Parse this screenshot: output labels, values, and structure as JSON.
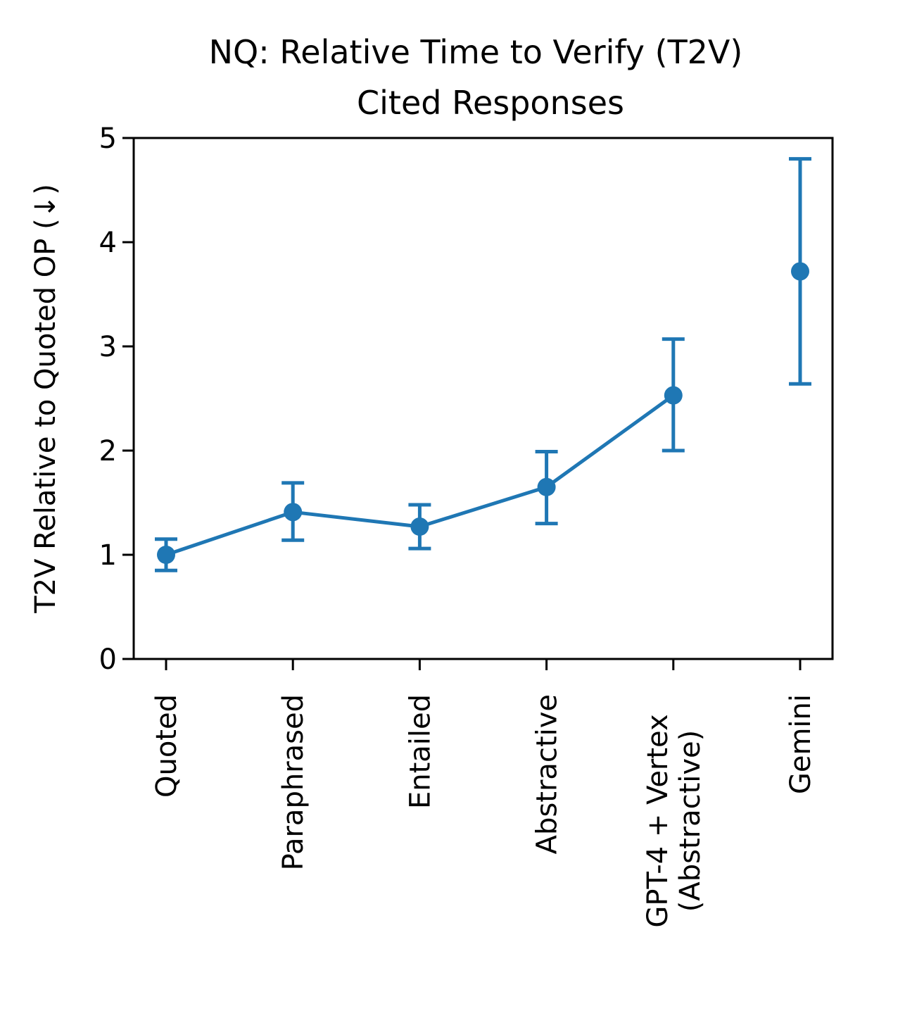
{
  "chart_data": {
    "type": "line",
    "title": [
      "NQ: Relative Time to Verify (T2V)",
      "Cited Responses"
    ],
    "xlabel": "",
    "ylabel": "T2V Relative to Quoted OP (↓)",
    "ylim": [
      0,
      5
    ],
    "yticks": [
      "0",
      "1",
      "2",
      "3",
      "4",
      "5"
    ],
    "categories": [
      [
        "Quoted"
      ],
      [
        "Paraphrased"
      ],
      [
        "Entailed"
      ],
      [
        "Abstractive"
      ],
      [
        "GPT-4 + Vertex",
        "(Abstractive)"
      ],
      [
        "Gemini"
      ]
    ],
    "series": [
      {
        "values": [
          1.0,
          1.41,
          1.27,
          1.65,
          2.53,
          3.72
        ],
        "err_low": [
          0.85,
          1.14,
          1.06,
          1.3,
          2.0,
          2.64
        ],
        "err_high": [
          1.15,
          1.69,
          1.48,
          1.99,
          3.07,
          4.8
        ],
        "connected": [
          true,
          true,
          true,
          true,
          true,
          false
        ],
        "color": "#1f77b4"
      }
    ],
    "grid": false,
    "legend": "none"
  }
}
